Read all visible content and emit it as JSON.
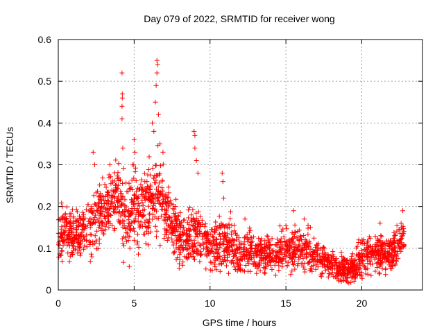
{
  "chart_data": {
    "type": "scatter",
    "title": "Day 079 of 2022, SRMTID for receiver wong",
    "xlabel": "GPS time / hours",
    "ylabel": "SRMTID / TECUs",
    "xlim": [
      0,
      24
    ],
    "ylim": [
      0,
      0.6
    ],
    "xticks": [
      0,
      5,
      10,
      15,
      20
    ],
    "yticks": [
      0,
      0.1,
      0.2,
      0.3,
      0.4,
      0.5,
      0.6
    ],
    "grid": true,
    "legend": "none",
    "marker": "plus",
    "color": "#ff0000",
    "series": [
      {
        "name": "SRMTID",
        "trend": {
          "x": [
            0,
            0.5,
            1,
            1.5,
            2,
            2.5,
            3,
            3.5,
            4,
            4.3,
            4.6,
            5,
            5.5,
            6,
            6.5,
            7,
            7.5,
            8,
            8.5,
            9,
            9.5,
            10,
            10.5,
            11,
            11.5,
            12,
            12.5,
            13,
            13.5,
            14,
            14.5,
            15,
            15.5,
            16,
            16.5,
            17,
            17.5,
            18,
            18.5,
            19,
            19.5,
            20,
            20.5,
            21,
            21.5,
            22,
            22.5,
            22.8
          ],
          "y": [
            0.14,
            0.14,
            0.13,
            0.13,
            0.15,
            0.17,
            0.19,
            0.21,
            0.22,
            0.18,
            0.16,
            0.21,
            0.2,
            0.22,
            0.22,
            0.2,
            0.16,
            0.13,
            0.12,
            0.14,
            0.13,
            0.1,
            0.1,
            0.11,
            0.1,
            0.09,
            0.09,
            0.09,
            0.09,
            0.08,
            0.09,
            0.1,
            0.09,
            0.1,
            0.09,
            0.08,
            0.07,
            0.06,
            0.05,
            0.05,
            0.05,
            0.08,
            0.09,
            0.09,
            0.09,
            0.09,
            0.11,
            0.13
          ],
          "spread": [
            0.04,
            0.04,
            0.04,
            0.04,
            0.05,
            0.05,
            0.05,
            0.05,
            0.05,
            0.06,
            0.06,
            0.06,
            0.06,
            0.06,
            0.06,
            0.05,
            0.05,
            0.04,
            0.04,
            0.05,
            0.04,
            0.04,
            0.04,
            0.04,
            0.04,
            0.03,
            0.03,
            0.03,
            0.03,
            0.03,
            0.03,
            0.03,
            0.03,
            0.03,
            0.03,
            0.03,
            0.02,
            0.02,
            0.02,
            0.02,
            0.02,
            0.03,
            0.03,
            0.03,
            0.03,
            0.03,
            0.03,
            0.03
          ]
        },
        "points_per_hour": 100,
        "peaks": [
          {
            "x": 2.3,
            "y": 0.33
          },
          {
            "x": 2.4,
            "y": 0.3
          },
          {
            "x": 3.4,
            "y": 0.3
          },
          {
            "x": 4.2,
            "y": 0.41
          },
          {
            "x": 4.2,
            "y": 0.44
          },
          {
            "x": 4.22,
            "y": 0.46
          },
          {
            "x": 4.22,
            "y": 0.47
          },
          {
            "x": 4.2,
            "y": 0.52
          },
          {
            "x": 4.25,
            "y": 0.34
          },
          {
            "x": 5.0,
            "y": 0.36
          },
          {
            "x": 5.05,
            "y": 0.33
          },
          {
            "x": 4.9,
            "y": 0.3
          },
          {
            "x": 6.2,
            "y": 0.4
          },
          {
            "x": 6.3,
            "y": 0.38
          },
          {
            "x": 6.4,
            "y": 0.45
          },
          {
            "x": 6.45,
            "y": 0.49
          },
          {
            "x": 6.5,
            "y": 0.52
          },
          {
            "x": 6.5,
            "y": 0.55
          },
          {
            "x": 6.55,
            "y": 0.54
          },
          {
            "x": 6.6,
            "y": 0.42
          },
          {
            "x": 6.7,
            "y": 0.35
          },
          {
            "x": 6.9,
            "y": 0.33
          },
          {
            "x": 8.95,
            "y": 0.38
          },
          {
            "x": 9.0,
            "y": 0.37
          },
          {
            "x": 9.0,
            "y": 0.34
          },
          {
            "x": 9.1,
            "y": 0.31
          },
          {
            "x": 9.2,
            "y": 0.28
          },
          {
            "x": 10.8,
            "y": 0.28
          },
          {
            "x": 10.85,
            "y": 0.26
          },
          {
            "x": 10.9,
            "y": 0.22
          },
          {
            "x": 12.3,
            "y": 0.17
          },
          {
            "x": 15.5,
            "y": 0.19
          },
          {
            "x": 16.2,
            "y": 0.17
          },
          {
            "x": 19.8,
            "y": 0.12
          },
          {
            "x": 21.2,
            "y": 0.16
          },
          {
            "x": 22.7,
            "y": 0.19
          }
        ]
      }
    ]
  }
}
